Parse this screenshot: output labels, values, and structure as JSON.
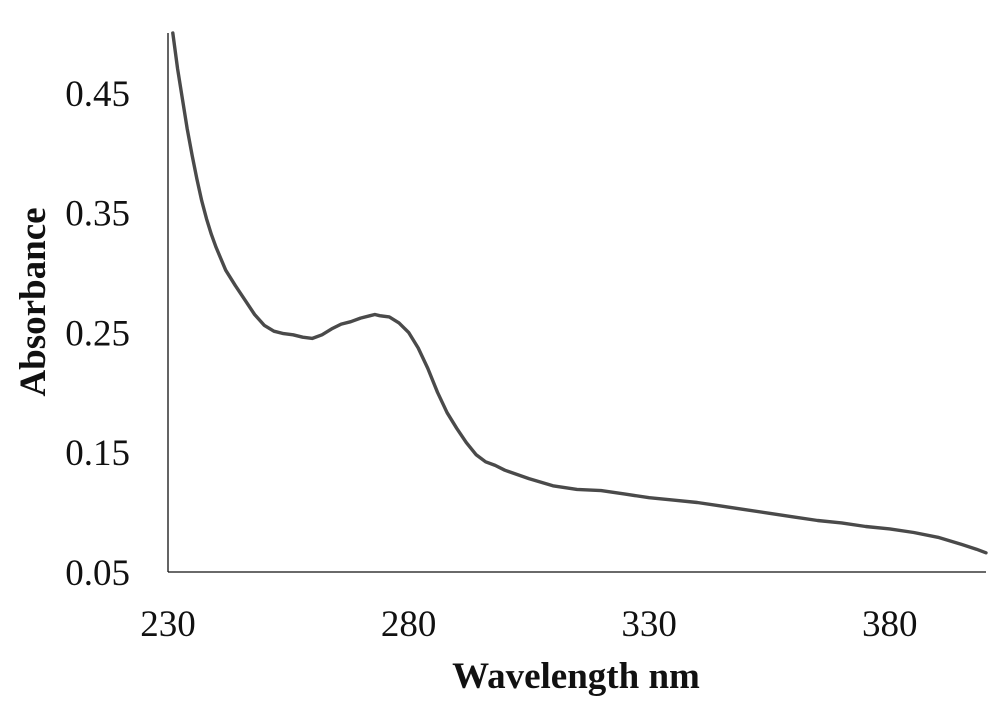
{
  "chart_data": {
    "type": "line",
    "title": "",
    "xlabel": "Wavelength nm",
    "ylabel": "Absorbance",
    "xlim": [
      230,
      400
    ],
    "ylim": [
      0.05,
      0.5
    ],
    "x_ticks": [
      230,
      280,
      330,
      380
    ],
    "y_ticks": [
      0.05,
      0.15,
      0.25,
      0.35,
      0.45
    ],
    "y_tick_labels": [
      "0.05",
      "0.15",
      "0.25",
      "0.35",
      "0.45"
    ],
    "x_tick_labels": [
      "230",
      "280",
      "330",
      "380"
    ],
    "grid": false,
    "legend": "none",
    "series": [
      {
        "color": "#4a4a4a",
        "x": [
          231,
          232,
          233,
          234,
          235,
          236,
          237,
          238,
          239,
          240,
          242,
          244,
          246,
          248,
          250,
          252,
          254,
          256,
          258,
          260,
          262,
          264,
          266,
          268,
          270,
          272,
          273,
          274,
          276,
          278,
          280,
          282,
          284,
          286,
          288,
          290,
          292,
          294,
          296,
          298,
          300,
          305,
          310,
          315,
          320,
          325,
          330,
          335,
          340,
          345,
          350,
          355,
          360,
          365,
          370,
          375,
          380,
          385,
          390,
          395,
          398,
          400
        ],
        "y": [
          0.5,
          0.47,
          0.445,
          0.42,
          0.398,
          0.378,
          0.36,
          0.345,
          0.332,
          0.321,
          0.302,
          0.289,
          0.277,
          0.265,
          0.256,
          0.251,
          0.249,
          0.248,
          0.246,
          0.245,
          0.248,
          0.253,
          0.257,
          0.259,
          0.262,
          0.264,
          0.265,
          0.264,
          0.263,
          0.258,
          0.25,
          0.237,
          0.22,
          0.2,
          0.183,
          0.17,
          0.158,
          0.148,
          0.142,
          0.139,
          0.135,
          0.128,
          0.122,
          0.119,
          0.118,
          0.115,
          0.112,
          0.11,
          0.108,
          0.105,
          0.102,
          0.099,
          0.096,
          0.093,
          0.091,
          0.088,
          0.086,
          0.083,
          0.079,
          0.073,
          0.069,
          0.066
        ]
      }
    ]
  }
}
